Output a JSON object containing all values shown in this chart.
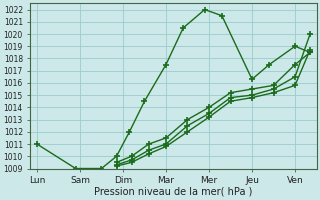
{
  "xlabel": "Pression niveau de la mer( hPa )",
  "background_color": "#cce8e8",
  "grid_color": "#99cccc",
  "line_color": "#1a6b1a",
  "ylim": [
    1009,
    1022.5
  ],
  "yticks": [
    1009,
    1010,
    1011,
    1012,
    1013,
    1014,
    1015,
    1016,
    1017,
    1018,
    1019,
    1020,
    1021,
    1022
  ],
  "x_labels": [
    "Lun",
    "Sam",
    "Dim",
    "Mar",
    "Mer",
    "Jeu",
    "Ven"
  ],
  "x_positions": [
    0,
    1,
    2,
    3,
    4,
    5,
    6
  ],
  "xlim": [
    -0.15,
    6.5
  ],
  "lines": [
    {
      "x": [
        0,
        0.9,
        1.5,
        1.85,
        2.15,
        2.5,
        3.0,
        3.4,
        3.9,
        4.3,
        5.0,
        5.4,
        6.0,
        6.35
      ],
      "y": [
        1011,
        1009,
        1009,
        1010,
        1012,
        1014.5,
        1017.5,
        1020.5,
        1022.0,
        1021.5,
        1016.3,
        1017.5,
        1019.0,
        1018.5
      ]
    },
    {
      "x": [
        1.85,
        2.2,
        2.6,
        3.0,
        3.5,
        4.0,
        4.5,
        5.0,
        5.5,
        6.0,
        6.35
      ],
      "y": [
        1009.5,
        1010.0,
        1011.0,
        1011.5,
        1013.0,
        1014.0,
        1015.2,
        1015.5,
        1015.8,
        1017.5,
        1018.5
      ]
    },
    {
      "x": [
        1.85,
        2.2,
        2.6,
        3.0,
        3.5,
        4.0,
        4.5,
        5.0,
        5.5,
        6.0,
        6.35
      ],
      "y": [
        1009.3,
        1009.7,
        1010.5,
        1011.0,
        1012.5,
        1013.5,
        1014.8,
        1015.0,
        1015.5,
        1016.5,
        1020.0
      ]
    },
    {
      "x": [
        1.85,
        2.2,
        2.6,
        3.0,
        3.5,
        4.0,
        4.5,
        5.0,
        5.5,
        6.0,
        6.35
      ],
      "y": [
        1009.2,
        1009.5,
        1010.2,
        1010.8,
        1012.0,
        1013.2,
        1014.5,
        1014.8,
        1015.2,
        1015.8,
        1018.7
      ]
    }
  ]
}
